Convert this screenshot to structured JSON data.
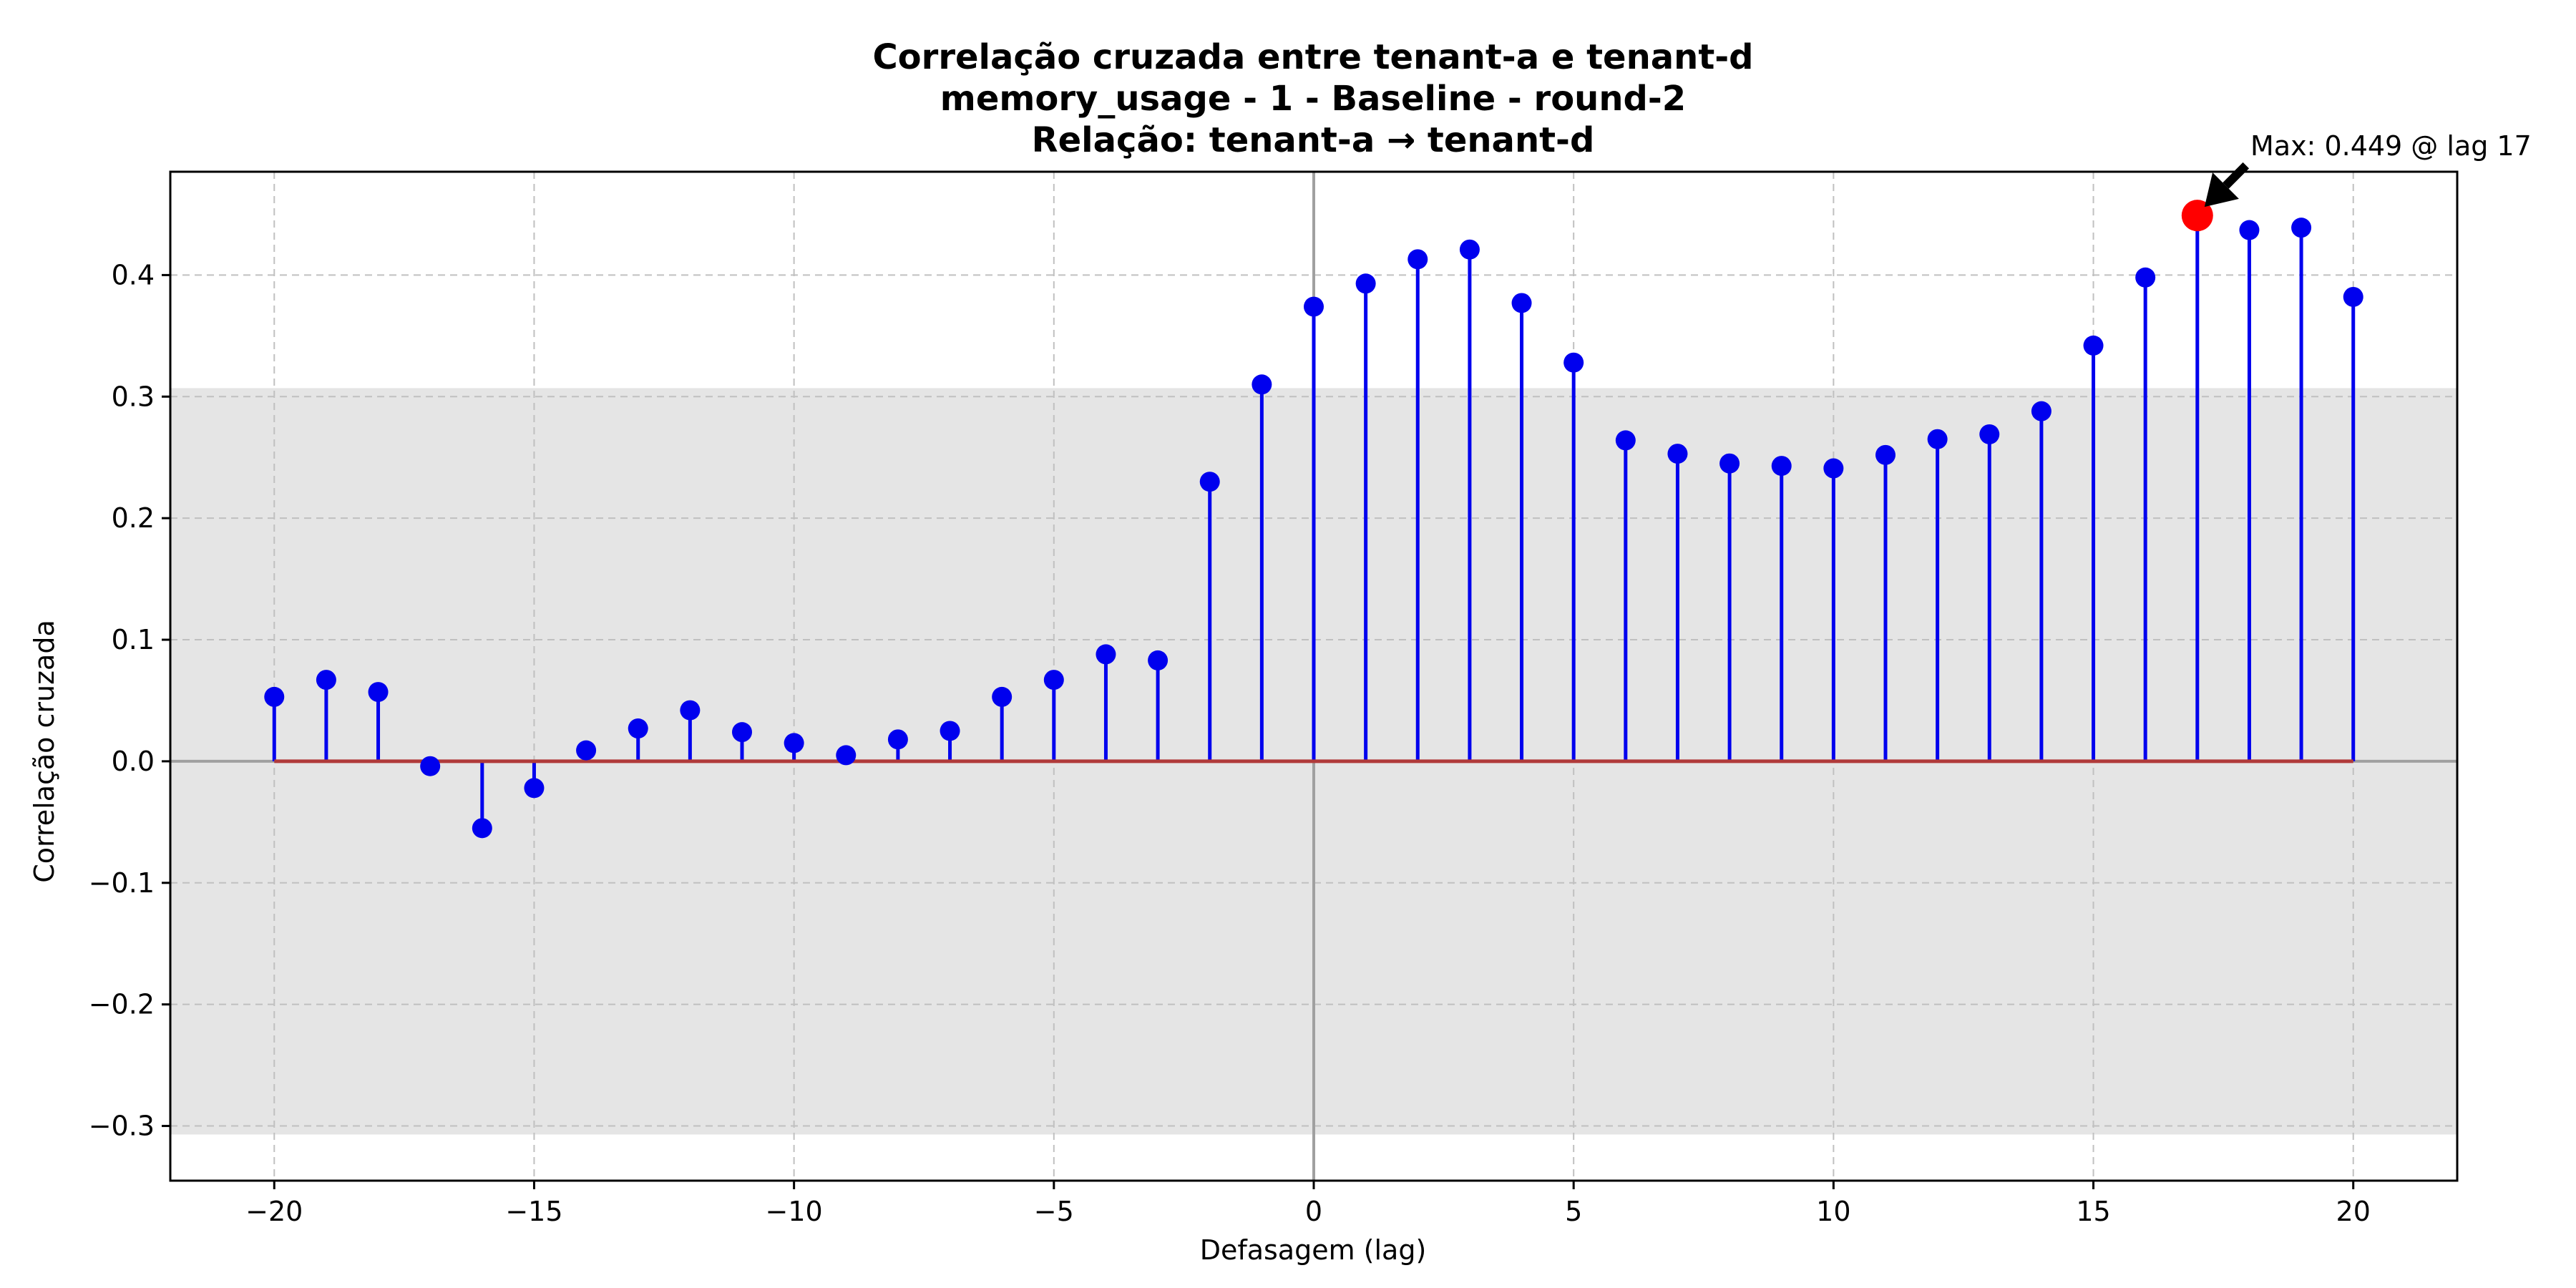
{
  "chart_data": {
    "type": "stem",
    "title_lines": [
      "Correlação cruzada entre tenant-a e tenant-d",
      "memory_usage - 1 - Baseline - round-2",
      "Relação: tenant-a → tenant-d"
    ],
    "xlabel": "Defasagem (lag)",
    "ylabel": "Correlação cruzada",
    "xlim": [
      -22,
      22
    ],
    "ylim": [
      -0.345,
      0.485
    ],
    "xticks": [
      -20,
      -15,
      -10,
      -5,
      0,
      5,
      10,
      15,
      20
    ],
    "xtick_labels": [
      "−20",
      "−15",
      "−10",
      "−5",
      "0",
      "5",
      "10",
      "15",
      "20"
    ],
    "yticks": [
      -0.3,
      -0.2,
      -0.1,
      0.0,
      0.1,
      0.2,
      0.3,
      0.4
    ],
    "ytick_labels": [
      "−0.3",
      "−0.2",
      "−0.1",
      "0.0",
      "0.1",
      "0.2",
      "0.3",
      "0.4"
    ],
    "grid": true,
    "significance_band": [
      -0.307,
      0.307
    ],
    "lags": [
      -20,
      -19,
      -18,
      -17,
      -16,
      -15,
      -14,
      -13,
      -12,
      -11,
      -10,
      -9,
      -8,
      -7,
      -6,
      -5,
      -4,
      -3,
      -2,
      -1,
      0,
      1,
      2,
      3,
      4,
      5,
      6,
      7,
      8,
      9,
      10,
      11,
      12,
      13,
      14,
      15,
      16,
      17,
      18,
      19,
      20
    ],
    "values": [
      0.053,
      0.067,
      0.057,
      -0.004,
      -0.055,
      -0.022,
      0.009,
      0.027,
      0.042,
      0.024,
      0.015,
      0.005,
      0.018,
      0.025,
      0.053,
      0.067,
      0.088,
      0.083,
      0.23,
      0.31,
      0.374,
      0.393,
      0.413,
      0.421,
      0.377,
      0.328,
      0.264,
      0.253,
      0.245,
      0.243,
      0.241,
      0.252,
      0.265,
      0.269,
      0.288,
      0.342,
      0.398,
      0.449,
      0.437,
      0.439,
      0.382
    ],
    "max_point": {
      "lag": 17,
      "value": 0.449
    },
    "annotation": "Max: 0.449 @ lag 17",
    "colors": {
      "stem": "#0000ee",
      "marker": "#0000ee",
      "baseline": "#b03a3a",
      "max_marker": "#ff0000",
      "band": "#e5e5e5",
      "grid": "#c0c0c0",
      "zero_lines": "#a0a0a0"
    }
  }
}
